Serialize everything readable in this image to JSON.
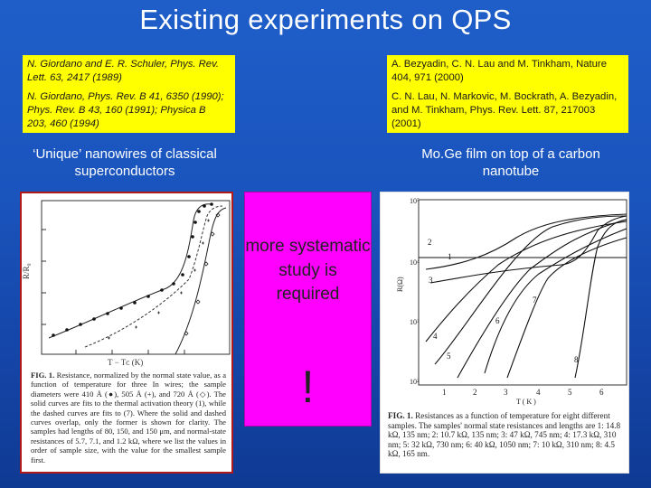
{
  "slide": {
    "title": "Existing experiments on QPS",
    "left_refs": [
      "N. Giordano and E. R. Schuler, Phys. Rev. Lett. 63, 2417 (1989)",
      "N. Giordano, Phys. Rev. B 41, 6350 (1990); Phys. Rev. B 43, 160 (1991); Physica B 203, 460 (1994)"
    ],
    "right_refs": [
      "A. Bezyadin, C. N. Lau and M. Tinkham, Nature 404, 971 (2000)",
      "C. N. Lau, N. Markovic, M. Bockrath, A. Bezyadin, and M. Tinkham, Phys. Rev. Lett. 87, 217003 (2001)"
    ],
    "left_caption": "‘Unique’ nanowires of classical superconductors",
    "right_caption": "Mo.Ge film on top of a carbon nanotube",
    "center_message": "more systematic study is required",
    "center_exclaim": "!"
  },
  "left_figure": {
    "ylabel": "R/R₀",
    "xlabel": "T − Tᴄ  (K)",
    "caption_head": "FIG. 1.",
    "caption_body": "Resistance, normalized by the normal state value, as a function of temperature for three In wires; the sample diameters were 410 Å (●), 505 Å (+), and 720 Å (◇). The solid curves are fits to the thermal activation theory (1), while the dashed curves are fits to (7). Where the solid and dashed curves overlap, only the former is shown for clarity. The samples had lengths of 80, 150, and 150 μm, and normal-state resistances of 5.7, 7.1, and 1.2 kΩ, where we list the values in order of sample size, with the value for the smallest sample first."
  },
  "right_figure": {
    "ylabel": "R(Ω)",
    "xlabel": "T ( K )",
    "y_ticks": [
      "10⁵",
      "10⁴",
      "10³",
      "10²"
    ],
    "x_ticks": [
      "1",
      "2",
      "3",
      "4",
      "5",
      "6"
    ],
    "curve_labels": [
      "1",
      "2",
      "3",
      "4",
      "5",
      "6",
      "7",
      "8"
    ],
    "caption_head": "FIG. 1.",
    "caption_body": "Resistances as a function of temperature for eight different samples. The samples' normal state resistances and lengths are 1: 14.8 kΩ, 135 nm; 2: 10.7 kΩ, 135 nm; 3: 47 kΩ, 745 nm; 4: 17.3 kΩ, 310 nm; 5: 32 kΩ, 730 nm; 6: 40 kΩ, 1050 nm; 7: 10 kΩ, 310 nm; 8: 4.5 kΩ, 165 nm."
  }
}
